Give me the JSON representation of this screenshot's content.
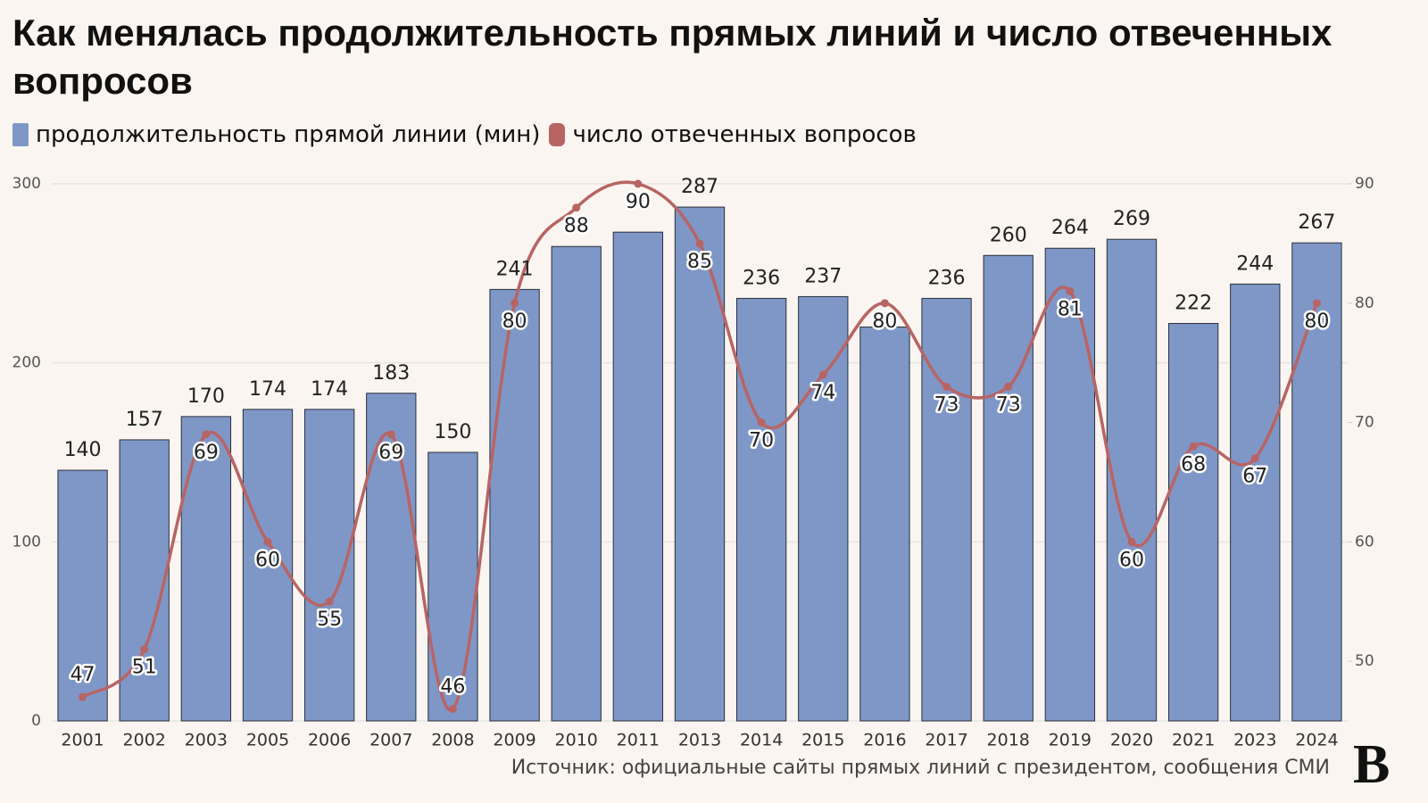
{
  "chart_data": {
    "type": "bar-line",
    "title": "Как менялась продолжительность прямых линий и число отвеченных вопросов",
    "source": "Источник: официальные сайты прямых линий с президентом, сообщения СМИ",
    "brand": "В",
    "categories": [
      "2001",
      "2002",
      "2003",
      "2005",
      "2006",
      "2007",
      "2008",
      "2009",
      "2010",
      "2011",
      "2013",
      "2014",
      "2015",
      "2016",
      "2017",
      "2018",
      "2019",
      "2020",
      "2021",
      "2023",
      "2024"
    ],
    "series": [
      {
        "name": "продолжительность прямой линии (мин)",
        "type": "bar",
        "color": "#7f97c7",
        "values": [
          140,
          157,
          170,
          174,
          174,
          183,
          150,
          241,
          265,
          273,
          287,
          236,
          237,
          220,
          236,
          260,
          264,
          269,
          222,
          244,
          267
        ],
        "value_labels": [
          "140",
          "157",
          "170",
          "174",
          "174",
          "183",
          "150",
          "241",
          null,
          null,
          "287",
          "236",
          "237",
          null,
          "236",
          "260",
          "264",
          "269",
          "222",
          "244",
          "267"
        ]
      },
      {
        "name": "число отвеченных вопросов",
        "type": "line",
        "axis": "y2",
        "color": "#b86464",
        "values": [
          47,
          51,
          69,
          60,
          55,
          69,
          46,
          80,
          88,
          90,
          85,
          70,
          74,
          80,
          73,
          73,
          81,
          60,
          68,
          67,
          80
        ]
      }
    ],
    "ylim": [
      0,
      300
    ],
    "yticks": [
      0,
      100,
      200,
      300
    ],
    "y2lim": [
      45,
      90
    ],
    "y2ticks": [
      50,
      60,
      70,
      80,
      90
    ],
    "grid": true
  }
}
